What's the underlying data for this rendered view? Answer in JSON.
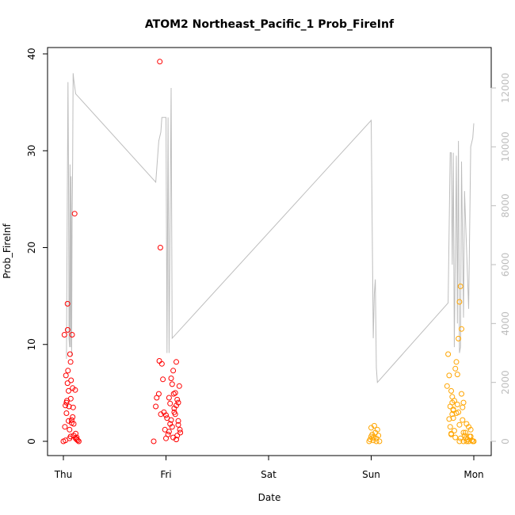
{
  "chart_data": {
    "type": "scatter",
    "title": "ATOM2 Northeast_Pacific_1 Prob_FireInf",
    "xlabel": "Date",
    "ylabel": "Prob_FireInf",
    "x_ticks": [
      "Thu",
      "Fri",
      "Sat",
      "Sun",
      "Mon"
    ],
    "ylim": [
      0,
      40
    ],
    "y_ticks": [
      0,
      10,
      20,
      30,
      40
    ],
    "y2lim": [
      0,
      13000
    ],
    "y2_ticks": [
      0,
      2000,
      4000,
      6000,
      8000,
      10000,
      12000
    ],
    "grid": false,
    "colors": {
      "points_red": "#ff0000",
      "points_orange": "#ffa500",
      "secondary_line": "#bdbdbd",
      "right_axis": "#bdbdbd",
      "frame": "#000000"
    },
    "series": [
      {
        "color": "points_red",
        "points": [
          [
            0.0,
            0
          ],
          [
            0.01,
            11.0
          ],
          [
            0.015,
            1.5
          ],
          [
            0.02,
            3.7
          ],
          [
            0.025,
            6.8
          ],
          [
            0.03,
            2.9
          ],
          [
            0.035,
            4.2
          ],
          [
            0.04,
            14.2
          ],
          [
            0.042,
            11.5
          ],
          [
            0.045,
            7.3
          ],
          [
            0.05,
            5.2
          ],
          [
            0.055,
            3.6
          ],
          [
            0.06,
            0.3
          ],
          [
            0.065,
            9.0
          ],
          [
            0.07,
            8.2
          ],
          [
            0.072,
            4.4
          ],
          [
            0.075,
            6.3
          ],
          [
            0.08,
            2.2
          ],
          [
            0.085,
            11.0
          ],
          [
            0.09,
            5.5
          ],
          [
            0.095,
            3.5
          ],
          [
            0.1,
            1.8
          ],
          [
            0.11,
            23.5
          ],
          [
            0.115,
            5.3
          ],
          [
            0.12,
            0.8
          ],
          [
            0.13,
            0.4
          ],
          [
            0.14,
            0.1
          ],
          [
            0.15,
            0
          ],
          [
            0.06,
            1.2
          ],
          [
            0.07,
            0.5
          ],
          [
            0.09,
            2.5
          ],
          [
            0.1,
            0.6
          ],
          [
            0.12,
            0.3
          ],
          [
            0.13,
            0.2
          ],
          [
            0.05,
            2.1
          ],
          [
            0.02,
            0.1
          ],
          [
            0.03,
            4.0
          ],
          [
            0.04,
            6.0
          ],
          [
            0.08,
            1.9
          ],
          [
            0.88,
            0
          ],
          [
            0.9,
            3.6
          ],
          [
            0.91,
            4.5
          ],
          [
            0.93,
            4.9
          ],
          [
            0.935,
            8.3
          ],
          [
            0.94,
            39.2
          ],
          [
            0.945,
            20.0
          ],
          [
            0.96,
            8.0
          ],
          [
            0.97,
            6.4
          ],
          [
            0.98,
            3.0
          ],
          [
            0.99,
            1.2
          ],
          [
            1.0,
            2.7
          ],
          [
            1.01,
            2.4
          ],
          [
            1.02,
            0.7
          ],
          [
            1.03,
            4.5
          ],
          [
            1.04,
            3.9
          ],
          [
            1.05,
            6.5
          ],
          [
            1.06,
            5.9
          ],
          [
            1.07,
            7.3
          ],
          [
            1.075,
            4.9
          ],
          [
            1.08,
            3.0
          ],
          [
            1.09,
            5.0
          ],
          [
            1.1,
            8.2
          ],
          [
            1.11,
            4.3
          ],
          [
            1.12,
            2.1
          ],
          [
            1.13,
            5.7
          ],
          [
            1.135,
            1.2
          ],
          [
            1.14,
            0.9
          ],
          [
            1.05,
            2.2
          ],
          [
            1.06,
            1.5
          ],
          [
            1.07,
            0.4
          ],
          [
            1.08,
            3.4
          ],
          [
            1.09,
            2.8
          ],
          [
            1.1,
            0.2
          ],
          [
            1.12,
            1.7
          ],
          [
            0.95,
            2.8
          ],
          [
            1.0,
            0.3
          ],
          [
            1.03,
            1.0
          ],
          [
            1.04,
            1.8
          ],
          [
            1.1,
            3.7
          ],
          [
            1.11,
            0.6
          ],
          [
            1.12,
            4.0
          ]
        ]
      },
      {
        "color": "points_orange",
        "points": [
          [
            2.98,
            0
          ],
          [
            2.99,
            0.2
          ],
          [
            3.0,
            0.5
          ],
          [
            3.01,
            0.7
          ],
          [
            3.02,
            0.1
          ],
          [
            3.03,
            1.6
          ],
          [
            3.04,
            0.9
          ],
          [
            3.05,
            0.3
          ],
          [
            3.06,
            1.2
          ],
          [
            3.07,
            0.6
          ],
          [
            3.08,
            0
          ],
          [
            3.0,
            1.4
          ],
          [
            3.02,
            0.4
          ],
          [
            3.05,
            0
          ],
          [
            3.74,
            5.7
          ],
          [
            3.75,
            9.0
          ],
          [
            3.76,
            6.8
          ],
          [
            3.77,
            3.6
          ],
          [
            3.78,
            0.8
          ],
          [
            3.79,
            2.8
          ],
          [
            3.8,
            3.2
          ],
          [
            3.81,
            4.2
          ],
          [
            3.82,
            7.5
          ],
          [
            3.83,
            8.2
          ],
          [
            3.84,
            6.9
          ],
          [
            3.85,
            10.6
          ],
          [
            3.86,
            14.4
          ],
          [
            3.87,
            16.0
          ],
          [
            3.88,
            11.6
          ],
          [
            3.89,
            3.5
          ],
          [
            3.9,
            4.0
          ],
          [
            3.91,
            0.6
          ],
          [
            3.92,
            0.9
          ],
          [
            3.93,
            1.8
          ],
          [
            3.94,
            0.2
          ],
          [
            3.95,
            0
          ],
          [
            3.96,
            0.5
          ],
          [
            3.97,
            1.2
          ],
          [
            3.98,
            0.1
          ],
          [
            3.99,
            0
          ],
          [
            4.0,
            0
          ],
          [
            3.85,
            3.0
          ],
          [
            3.86,
            1.7
          ],
          [
            3.87,
            0.3
          ],
          [
            3.88,
            4.9
          ],
          [
            3.89,
            2.2
          ],
          [
            3.9,
            0.9
          ],
          [
            3.78,
            5.2
          ],
          [
            3.79,
            4.0
          ],
          [
            3.8,
            2.4
          ],
          [
            3.81,
            1.1
          ],
          [
            3.82,
            0.4
          ],
          [
            3.83,
            2.9
          ],
          [
            3.84,
            3.8
          ],
          [
            3.86,
            0
          ],
          [
            3.9,
            0
          ],
          [
            3.93,
            0
          ],
          [
            3.76,
            2.3
          ],
          [
            3.77,
            1.5
          ],
          [
            3.78,
            0.7
          ],
          [
            3.79,
            4.6
          ],
          [
            3.8,
            3.3
          ],
          [
            3.92,
            0.3
          ],
          [
            3.95,
            1.5
          ],
          [
            3.97,
            0.5
          ]
        ]
      }
    ],
    "secondary_series": {
      "color": "secondary_line",
      "axis": "right",
      "points": [
        [
          0.03,
          2800
        ],
        [
          0.035,
          6000
        ],
        [
          0.04,
          9500
        ],
        [
          0.045,
          12200
        ],
        [
          0.05,
          9000
        ],
        [
          0.055,
          3500
        ],
        [
          0.06,
          3200
        ],
        [
          0.065,
          9400
        ],
        [
          0.07,
          3200
        ],
        [
          0.075,
          9000
        ],
        [
          0.08,
          2900
        ],
        [
          0.085,
          7500
        ],
        [
          0.09,
          9500
        ],
        [
          0.095,
          12500
        ],
        [
          0.1,
          12300
        ],
        [
          0.12,
          11800
        ],
        [
          0.9,
          8800
        ],
        [
          0.93,
          10200
        ],
        [
          0.95,
          10500
        ],
        [
          0.96,
          11000
        ],
        [
          0.98,
          11000
        ],
        [
          1.0,
          11000
        ],
        [
          1.01,
          3000
        ],
        [
          1.02,
          11000
        ],
        [
          1.03,
          3000
        ],
        [
          1.05,
          12000
        ],
        [
          1.06,
          3500
        ],
        [
          3.0,
          10900
        ],
        [
          3.02,
          3500
        ],
        [
          3.03,
          5000
        ],
        [
          3.04,
          5500
        ],
        [
          3.05,
          2500
        ],
        [
          3.06,
          2000
        ],
        [
          3.75,
          4700
        ],
        [
          3.77,
          9800
        ],
        [
          3.78,
          9800
        ],
        [
          3.79,
          6000
        ],
        [
          3.8,
          9800
        ],
        [
          3.81,
          3200
        ],
        [
          3.83,
          9700
        ],
        [
          3.84,
          4000
        ],
        [
          3.85,
          10200
        ],
        [
          3.86,
          3000
        ],
        [
          3.87,
          3200
        ],
        [
          3.88,
          9500
        ],
        [
          3.9,
          4200
        ],
        [
          3.91,
          8500
        ],
        [
          3.95,
          4500
        ],
        [
          3.97,
          10000
        ],
        [
          3.99,
          10300
        ],
        [
          4.0,
          10800
        ]
      ]
    }
  }
}
